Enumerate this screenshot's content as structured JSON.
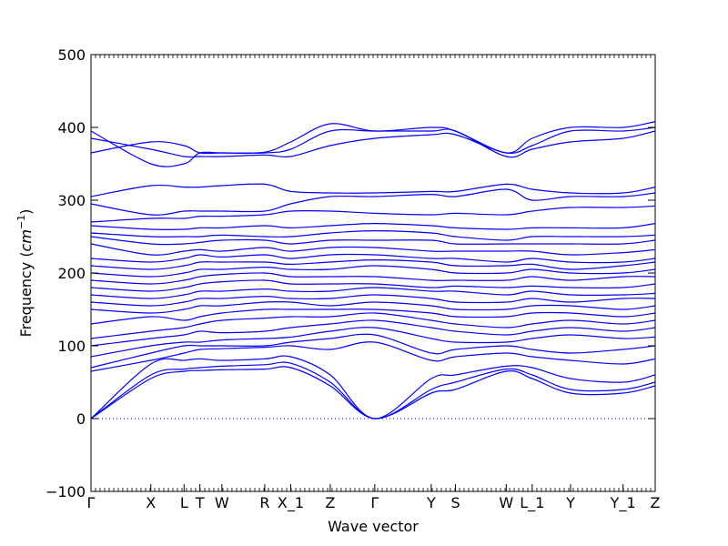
{
  "chart_data": {
    "type": "line",
    "title": "",
    "xlabel": "Wave vector",
    "ylabel_prefix": "Frequency (",
    "ylabel_unit": "cm",
    "ylabel_exp": "−1",
    "ylabel_suffix": ")",
    "ylim": [
      -100,
      500
    ],
    "yticks": [
      -100,
      0,
      100,
      200,
      300,
      400,
      500
    ],
    "ytick_labels": [
      "−100",
      "0",
      "100",
      "200",
      "300",
      "400",
      "500"
    ],
    "kpath": {
      "labels": [
        "Γ",
        "X",
        "L",
        "T",
        "W",
        "R",
        "X_1",
        "Z",
        "Γ",
        "Y",
        "S",
        "W",
        "L_1",
        "Y",
        "Y_1",
        "Z"
      ],
      "positions": [
        0,
        0.106,
        0.165,
        0.193,
        0.232,
        0.308,
        0.354,
        0.424,
        0.503,
        0.603,
        0.646,
        0.736,
        0.782,
        0.85,
        0.943,
        1.0
      ]
    },
    "zero_line": true,
    "line_color": "#0000ff",
    "series_x": [
      0,
      0.106,
      0.165,
      0.193,
      0.232,
      0.308,
      0.354,
      0.424,
      0.503,
      0.603,
      0.646,
      0.736,
      0.782,
      0.85,
      0.943,
      1.0
    ],
    "series": [
      {
        "values": [
          0,
          55,
          65,
          66,
          67,
          68,
          70,
          45,
          0,
          35,
          40,
          65,
          55,
          35,
          35,
          45
        ]
      },
      {
        "values": [
          0,
          60,
          68,
          70,
          72,
          74,
          76,
          50,
          0,
          40,
          50,
          68,
          60,
          40,
          40,
          50
        ]
      },
      {
        "values": [
          0,
          75,
          80,
          82,
          80,
          82,
          85,
          60,
          0,
          55,
          60,
          72,
          70,
          55,
          50,
          60
        ]
      },
      {
        "values": [
          65,
          80,
          90,
          95,
          96,
          98,
          100,
          95,
          105,
          80,
          85,
          90,
          85,
          80,
          75,
          82
        ]
      },
      {
        "values": [
          70,
          90,
          100,
          100,
          100,
          100,
          105,
          110,
          115,
          90,
          95,
          100,
          95,
          90,
          95,
          100
        ]
      },
      {
        "values": [
          85,
          100,
          105,
          105,
          108,
          110,
          112,
          120,
          125,
          110,
          105,
          105,
          110,
          115,
          110,
          112
        ]
      },
      {
        "values": [
          100,
          110,
          115,
          120,
          118,
          120,
          125,
          130,
          135,
          125,
          120,
          115,
          120,
          125,
          120,
          125
        ]
      },
      {
        "values": [
          110,
          120,
          125,
          130,
          135,
          138,
          140,
          140,
          145,
          135,
          130,
          125,
          130,
          135,
          130,
          135
        ]
      },
      {
        "values": [
          130,
          140,
          135,
          140,
          145,
          150,
          150,
          150,
          150,
          145,
          140,
          140,
          145,
          145,
          140,
          145
        ]
      },
      {
        "values": [
          150,
          145,
          150,
          155,
          155,
          160,
          160,
          155,
          160,
          155,
          150,
          150,
          155,
          155,
          150,
          155
        ]
      },
      {
        "values": [
          160,
          155,
          160,
          165,
          165,
          168,
          165,
          165,
          170,
          165,
          160,
          160,
          165,
          160,
          165,
          165
        ]
      },
      {
        "values": [
          170,
          165,
          170,
          175,
          175,
          178,
          175,
          175,
          180,
          175,
          175,
          170,
          175,
          170,
          170,
          172
        ]
      },
      {
        "values": [
          180,
          175,
          180,
          185,
          188,
          190,
          185,
          185,
          185,
          180,
          182,
          180,
          182,
          180,
          180,
          185
        ]
      },
      {
        "values": [
          190,
          185,
          190,
          195,
          198,
          200,
          195,
          195,
          195,
          190,
          190,
          190,
          195,
          190,
          195,
          195
        ]
      },
      {
        "values": [
          200,
          195,
          200,
          205,
          205,
          208,
          205,
          205,
          210,
          205,
          200,
          200,
          205,
          200,
          200,
          205
        ]
      },
      {
        "values": [
          210,
          205,
          210,
          215,
          215,
          215,
          212,
          215,
          218,
          215,
          210,
          210,
          212,
          205,
          210,
          215
        ]
      },
      {
        "values": [
          220,
          215,
          220,
          225,
          222,
          225,
          220,
          225,
          225,
          220,
          220,
          215,
          220,
          215,
          215,
          220
        ]
      },
      {
        "values": [
          240,
          225,
          230,
          232,
          230,
          235,
          230,
          235,
          235,
          230,
          230,
          230,
          230,
          225,
          228,
          232
        ]
      },
      {
        "values": [
          250,
          240,
          240,
          242,
          245,
          245,
          240,
          245,
          245,
          245,
          240,
          240,
          240,
          240,
          240,
          245
        ]
      },
      {
        "values": [
          255,
          250,
          250,
          250,
          252,
          250,
          250,
          255,
          258,
          255,
          250,
          245,
          250,
          250,
          250,
          252
        ]
      },
      {
        "values": [
          265,
          260,
          260,
          262,
          262,
          265,
          262,
          265,
          268,
          265,
          262,
          260,
          262,
          262,
          262,
          268
        ]
      },
      {
        "values": [
          270,
          275,
          275,
          278,
          278,
          280,
          285,
          285,
          282,
          280,
          282,
          280,
          285,
          290,
          290,
          292
        ]
      },
      {
        "values": [
          295,
          280,
          285,
          285,
          285,
          285,
          295,
          305,
          305,
          308,
          305,
          315,
          300,
          305,
          305,
          310
        ]
      },
      {
        "values": [
          305,
          320,
          318,
          318,
          320,
          322,
          312,
          310,
          310,
          312,
          312,
          322,
          315,
          310,
          310,
          318
        ]
      },
      {
        "values": [
          365,
          380,
          375,
          365,
          365,
          365,
          370,
          395,
          395,
          395,
          395,
          360,
          370,
          380,
          385,
          395
        ]
      },
      {
        "values": [
          385,
          370,
          360,
          360,
          360,
          362,
          360,
          375,
          385,
          390,
          390,
          365,
          375,
          395,
          395,
          400
        ]
      },
      {
        "values": [
          395,
          350,
          350,
          365,
          365,
          366,
          380,
          405,
          395,
          400,
          395,
          365,
          385,
          400,
          400,
          408
        ]
      }
    ]
  }
}
